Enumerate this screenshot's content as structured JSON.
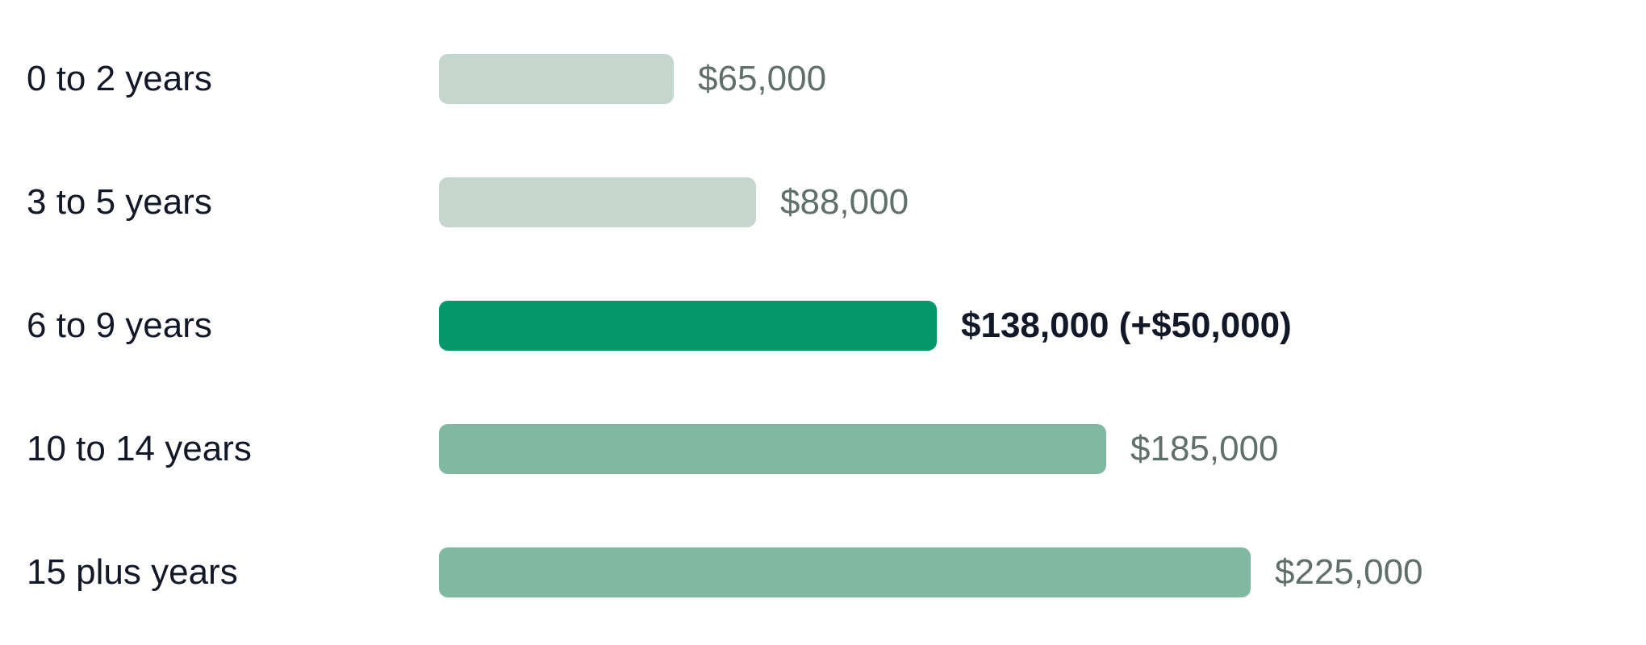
{
  "chart_data": {
    "type": "bar",
    "orientation": "horizontal",
    "categories": [
      "0 to 2 years",
      "3 to 5 years",
      "6 to 9 years",
      "10 to 14 years",
      "15 plus years"
    ],
    "values": [
      65000,
      88000,
      138000,
      185000,
      225000
    ],
    "value_labels": [
      "$65,000",
      "$88,000",
      "$138,000 (+$50,000)",
      "$185,000",
      "$225,000"
    ],
    "bar_colors": [
      "#c4d6cd",
      "#c4d6cd",
      "#05966a",
      "#80b8a1",
      "#80b8a1"
    ],
    "highlight_index": 2,
    "xlim": [
      0,
      225000
    ],
    "grid": false,
    "title": "",
    "xlabel": "",
    "ylabel": ""
  }
}
